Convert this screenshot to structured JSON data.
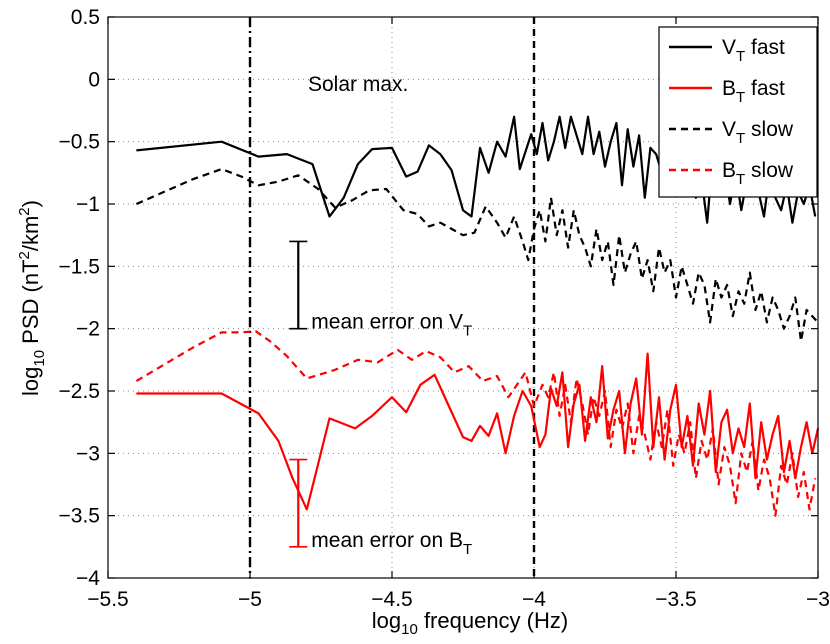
{
  "chart_data": {
    "type": "line",
    "title": "",
    "annotation": "Solar max.",
    "xlabel": {
      "prefix": "log",
      "sub": "10",
      "suffix": " frequency (Hz)"
    },
    "ylabel": {
      "prefix": "log",
      "sub": "10",
      "mid": " PSD (nT",
      "sup": "2",
      "mid2": "/km",
      "sup2": "2",
      "suffix": ")"
    },
    "xlim": [
      -5.5,
      -3
    ],
    "ylim": [
      -4,
      0.5
    ],
    "xticks": [
      -5.5,
      -5,
      -4.5,
      -4,
      -3.5,
      -3
    ],
    "xtick_labels": [
      "−5.5",
      "−5",
      "−4.5",
      "−4",
      "−3.5",
      "−3"
    ],
    "yticks": [
      -4,
      -3.5,
      -3,
      -2.5,
      -2,
      -1.5,
      -1,
      -0.5,
      0,
      0.5
    ],
    "ytick_labels": [
      "−4",
      "−3.5",
      "−3",
      "−2.5",
      "−2",
      "−1.5",
      "−1",
      "−0.5",
      "0",
      "0.5"
    ],
    "grid": true,
    "vlines": [
      {
        "x": -5,
        "style": "dashdot",
        "color": "#000000"
      },
      {
        "x": -4,
        "style": "dashed",
        "color": "#000000"
      }
    ],
    "legend": {
      "placement": "top-right",
      "entries": [
        {
          "base": "V",
          "sub": "T",
          "label": " fast",
          "color": "#000000",
          "style": "solid"
        },
        {
          "base": "B",
          "sub": "T",
          "label": " fast",
          "color": "#ff0000",
          "style": "solid"
        },
        {
          "base": "V",
          "sub": "T",
          "label": " slow",
          "color": "#000000",
          "style": "dashed"
        },
        {
          "base": "B",
          "sub": "T",
          "label": " slow",
          "color": "#ff0000",
          "style": "dashed"
        }
      ]
    },
    "error_bars": [
      {
        "x": -4.83,
        "low": -2.0,
        "high": -1.3,
        "color": "#000000",
        "label": "mean error on ",
        "base": "V",
        "sub": "T"
      },
      {
        "x": -4.83,
        "low": -3.75,
        "high": -3.05,
        "color": "#ff0000",
        "label": "mean error on ",
        "base": "B",
        "sub": "T"
      }
    ],
    "series": [
      {
        "name": "VT fast",
        "color": "#000000",
        "dash": "solid",
        "x": [
          -5.4,
          -5.1,
          -4.97,
          -4.87,
          -4.78,
          -4.72,
          -4.67,
          -4.62,
          -4.57,
          -4.5,
          -4.45,
          -4.41,
          -4.37,
          -4.33,
          -4.29,
          -4.25,
          -4.22,
          -4.19,
          -4.16,
          -4.13,
          -4.1,
          -4.07,
          -4.05,
          -4.03,
          -4.01,
          -3.99,
          -3.97,
          -3.95,
          -3.93,
          -3.91,
          -3.89,
          -3.87,
          -3.85,
          -3.83,
          -3.81,
          -3.79,
          -3.77,
          -3.75,
          -3.73,
          -3.71,
          -3.69,
          -3.67,
          -3.65,
          -3.63,
          -3.61,
          -3.59,
          -3.57,
          -3.55,
          -3.53,
          -3.51,
          -3.49,
          -3.47,
          -3.45,
          -3.43,
          -3.41,
          -3.39,
          -3.37,
          -3.35,
          -3.33,
          -3.31,
          -3.29,
          -3.27,
          -3.25,
          -3.23,
          -3.21,
          -3.19,
          -3.17,
          -3.15,
          -3.13,
          -3.11,
          -3.09,
          -3.07,
          -3.05,
          -3.03,
          -3.01
        ],
        "y": [
          -0.57,
          -0.5,
          -0.62,
          -0.6,
          -0.68,
          -1.1,
          -0.95,
          -0.68,
          -0.56,
          -0.55,
          -0.78,
          -0.74,
          -0.53,
          -0.6,
          -0.73,
          -1.05,
          -1.1,
          -0.55,
          -0.75,
          -0.5,
          -0.62,
          -0.3,
          -0.72,
          -0.58,
          -0.44,
          -0.6,
          -0.35,
          -0.65,
          -0.5,
          -0.3,
          -0.55,
          -0.3,
          -0.45,
          -0.6,
          -0.3,
          -0.6,
          -0.42,
          -0.7,
          -0.5,
          -0.35,
          -0.85,
          -0.4,
          -0.7,
          -0.45,
          -0.95,
          -0.55,
          -0.6,
          -0.75,
          -0.7,
          -0.55,
          -0.85,
          -0.6,
          -0.35,
          -0.95,
          -0.8,
          -1.15,
          -0.6,
          -0.9,
          -0.7,
          -1.0,
          -0.75,
          -1.05,
          -0.8,
          -0.7,
          -0.9,
          -1.1,
          -0.75,
          -0.95,
          -1.05,
          -0.85,
          -1.15,
          -0.9,
          -1.0,
          -0.85,
          -1.1
        ]
      },
      {
        "name": "BT fast",
        "color": "#ff0000",
        "dash": "solid",
        "x": [
          -5.4,
          -5.1,
          -4.97,
          -4.9,
          -4.85,
          -4.8,
          -4.72,
          -4.63,
          -4.57,
          -4.5,
          -4.45,
          -4.4,
          -4.35,
          -4.3,
          -4.25,
          -4.22,
          -4.19,
          -4.16,
          -4.13,
          -4.1,
          -4.07,
          -4.04,
          -4.01,
          -3.98,
          -3.96,
          -3.94,
          -3.92,
          -3.9,
          -3.88,
          -3.86,
          -3.84,
          -3.82,
          -3.8,
          -3.78,
          -3.76,
          -3.74,
          -3.72,
          -3.7,
          -3.68,
          -3.66,
          -3.64,
          -3.62,
          -3.6,
          -3.58,
          -3.56,
          -3.54,
          -3.52,
          -3.5,
          -3.48,
          -3.46,
          -3.44,
          -3.42,
          -3.4,
          -3.38,
          -3.36,
          -3.34,
          -3.32,
          -3.3,
          -3.28,
          -3.26,
          -3.24,
          -3.22,
          -3.2,
          -3.18,
          -3.16,
          -3.14,
          -3.12,
          -3.1,
          -3.08,
          -3.06,
          -3.04,
          -3.02,
          -3.0
        ],
        "y": [
          -2.52,
          -2.52,
          -2.68,
          -2.9,
          -3.2,
          -3.45,
          -2.72,
          -2.8,
          -2.7,
          -2.55,
          -2.67,
          -2.45,
          -2.37,
          -2.62,
          -2.87,
          -2.9,
          -2.78,
          -2.86,
          -2.68,
          -3.0,
          -2.7,
          -2.5,
          -2.62,
          -2.95,
          -2.85,
          -2.48,
          -2.62,
          -2.35,
          -2.95,
          -2.6,
          -2.45,
          -2.9,
          -2.55,
          -2.75,
          -2.3,
          -2.88,
          -2.65,
          -2.5,
          -3.0,
          -2.6,
          -2.4,
          -2.85,
          -2.2,
          -2.95,
          -2.55,
          -3.05,
          -2.65,
          -2.45,
          -2.95,
          -2.7,
          -3.1,
          -2.6,
          -2.85,
          -2.5,
          -3.15,
          -2.75,
          -2.65,
          -3.0,
          -2.8,
          -2.95,
          -2.6,
          -3.2,
          -2.75,
          -3.05,
          -2.85,
          -2.7,
          -3.15,
          -2.9,
          -3.2,
          -2.95,
          -2.75,
          -3.0,
          -2.8
        ]
      },
      {
        "name": "VT slow",
        "color": "#000000",
        "dash": "dashed",
        "x": [
          -5.4,
          -5.2,
          -5.1,
          -5.03,
          -4.97,
          -4.9,
          -4.83,
          -4.76,
          -4.7,
          -4.64,
          -4.58,
          -4.52,
          -4.46,
          -4.41,
          -4.37,
          -4.33,
          -4.29,
          -4.25,
          -4.21,
          -4.17,
          -4.13,
          -4.1,
          -4.07,
          -4.04,
          -4.02,
          -4.0,
          -3.98,
          -3.96,
          -3.94,
          -3.92,
          -3.9,
          -3.88,
          -3.86,
          -3.84,
          -3.82,
          -3.8,
          -3.78,
          -3.76,
          -3.74,
          -3.72,
          -3.7,
          -3.68,
          -3.66,
          -3.64,
          -3.62,
          -3.6,
          -3.58,
          -3.56,
          -3.54,
          -3.52,
          -3.5,
          -3.48,
          -3.46,
          -3.44,
          -3.42,
          -3.4,
          -3.38,
          -3.36,
          -3.34,
          -3.32,
          -3.3,
          -3.28,
          -3.26,
          -3.24,
          -3.22,
          -3.2,
          -3.18,
          -3.16,
          -3.14,
          -3.12,
          -3.1,
          -3.08,
          -3.06,
          -3.04,
          -3.02,
          -3.0
        ],
        "y": [
          -1.0,
          -0.8,
          -0.72,
          -0.78,
          -0.85,
          -0.82,
          -0.77,
          -0.88,
          -1.03,
          -0.97,
          -0.89,
          -0.88,
          -1.05,
          -1.08,
          -1.18,
          -1.15,
          -1.2,
          -1.25,
          -1.23,
          -1.02,
          -1.15,
          -1.27,
          -1.1,
          -1.3,
          -1.45,
          -1.2,
          -1.05,
          -1.3,
          -0.95,
          -1.25,
          -1.05,
          -1.35,
          -1.05,
          -1.25,
          -1.35,
          -1.5,
          -1.2,
          -1.45,
          -1.3,
          -1.65,
          -1.25,
          -1.55,
          -1.4,
          -1.3,
          -1.6,
          -1.45,
          -1.7,
          -1.35,
          -1.55,
          -1.45,
          -1.75,
          -1.5,
          -1.65,
          -1.8,
          -1.55,
          -1.65,
          -1.95,
          -1.6,
          -1.75,
          -1.65,
          -1.9,
          -1.7,
          -1.8,
          -1.55,
          -1.85,
          -1.7,
          -1.95,
          -1.75,
          -1.85,
          -2.0,
          -1.9,
          -1.75,
          -2.1,
          -1.85,
          -1.9,
          -1.95
        ]
      },
      {
        "name": "BT slow",
        "color": "#ff0000",
        "dash": "dashed",
        "x": [
          -5.4,
          -5.2,
          -5.1,
          -5.03,
          -4.98,
          -4.93,
          -4.87,
          -4.8,
          -4.7,
          -4.62,
          -4.55,
          -4.48,
          -4.43,
          -4.38,
          -4.33,
          -4.28,
          -4.23,
          -4.18,
          -4.13,
          -4.09,
          -4.06,
          -4.03,
          -4.0,
          -3.97,
          -3.95,
          -3.93,
          -3.91,
          -3.89,
          -3.87,
          -3.85,
          -3.83,
          -3.81,
          -3.79,
          -3.77,
          -3.75,
          -3.73,
          -3.71,
          -3.69,
          -3.67,
          -3.65,
          -3.63,
          -3.61,
          -3.59,
          -3.57,
          -3.55,
          -3.53,
          -3.51,
          -3.49,
          -3.47,
          -3.45,
          -3.43,
          -3.41,
          -3.39,
          -3.37,
          -3.35,
          -3.33,
          -3.31,
          -3.29,
          -3.27,
          -3.25,
          -3.23,
          -3.21,
          -3.19,
          -3.17,
          -3.15,
          -3.13,
          -3.11,
          -3.09,
          -3.07,
          -3.05,
          -3.03,
          -3.01
        ],
        "y": [
          -2.42,
          -2.15,
          -2.03,
          -2.03,
          -2.02,
          -2.1,
          -2.22,
          -2.4,
          -2.33,
          -2.25,
          -2.27,
          -2.17,
          -2.25,
          -2.18,
          -2.23,
          -2.35,
          -2.3,
          -2.42,
          -2.38,
          -2.55,
          -2.45,
          -2.35,
          -2.62,
          -2.45,
          -2.55,
          -2.35,
          -2.7,
          -2.45,
          -2.75,
          -2.4,
          -2.6,
          -2.85,
          -2.55,
          -2.7,
          -2.5,
          -2.95,
          -2.65,
          -2.8,
          -2.6,
          -3.0,
          -2.7,
          -2.85,
          -3.05,
          -2.75,
          -2.95,
          -2.65,
          -3.1,
          -2.85,
          -3.0,
          -2.75,
          -3.2,
          -2.9,
          -3.05,
          -2.8,
          -3.25,
          -2.95,
          -3.1,
          -3.4,
          -3.0,
          -3.15,
          -2.9,
          -3.3,
          -3.05,
          -3.2,
          -3.5,
          -3.1,
          -3.25,
          -3.0,
          -3.35,
          -3.15,
          -3.45,
          -3.2
        ]
      }
    ]
  }
}
